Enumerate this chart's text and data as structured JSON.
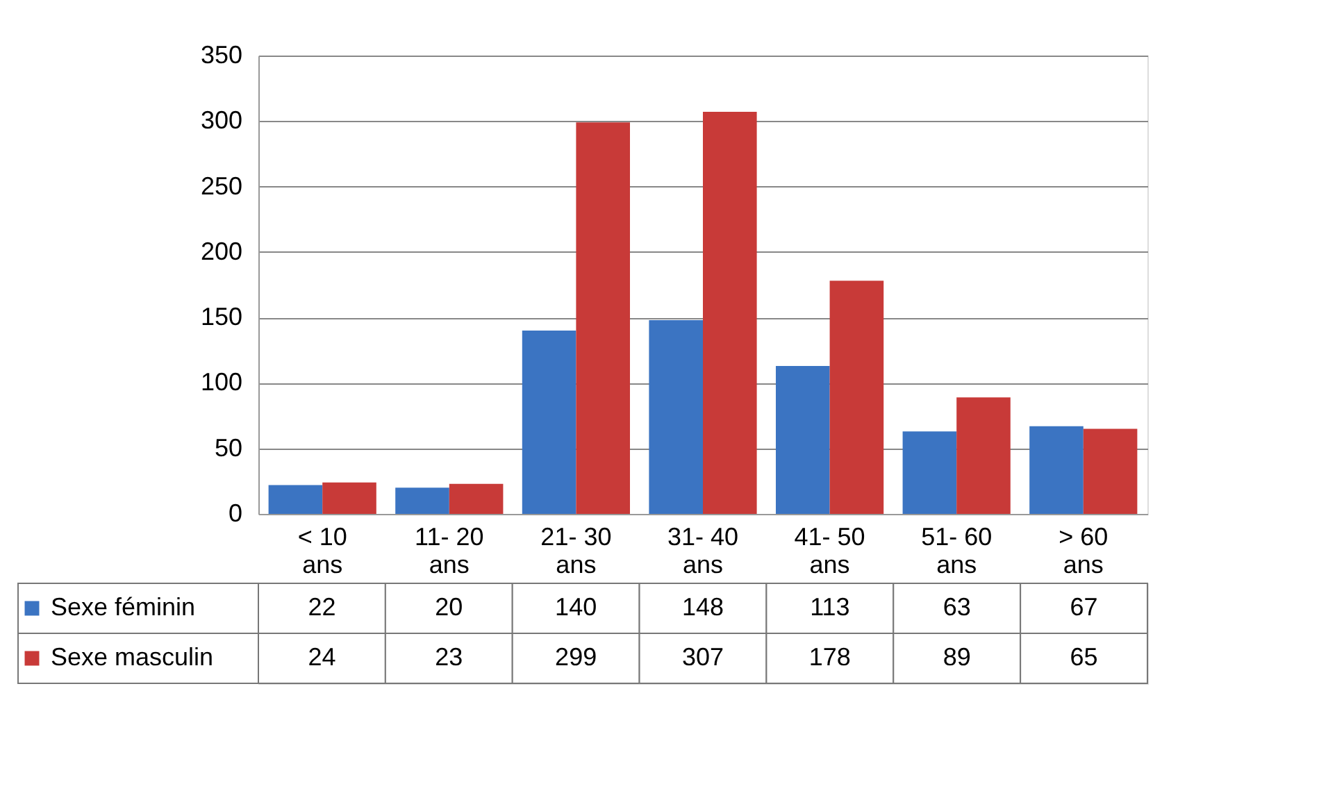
{
  "chart_data": {
    "type": "bar",
    "categories": [
      "< 10 ans",
      "11- 20 ans",
      "21- 30 ans",
      "31- 40 ans",
      "41- 50 ans",
      "51- 60 ans",
      "> 60 ans"
    ],
    "series": [
      {
        "name": "Sexe féminin",
        "color": "#3b74c2",
        "values": [
          22,
          20,
          140,
          148,
          113,
          63,
          67
        ]
      },
      {
        "name": "Sexe masculin",
        "color": "#c83a38",
        "values": [
          24,
          23,
          299,
          307,
          178,
          89,
          65
        ]
      }
    ],
    "ylim": [
      0,
      350
    ],
    "yticks": [
      0,
      50,
      100,
      150,
      200,
      250,
      300,
      350
    ],
    "grid": "y",
    "legend": "bottom",
    "data_labels": true
  }
}
